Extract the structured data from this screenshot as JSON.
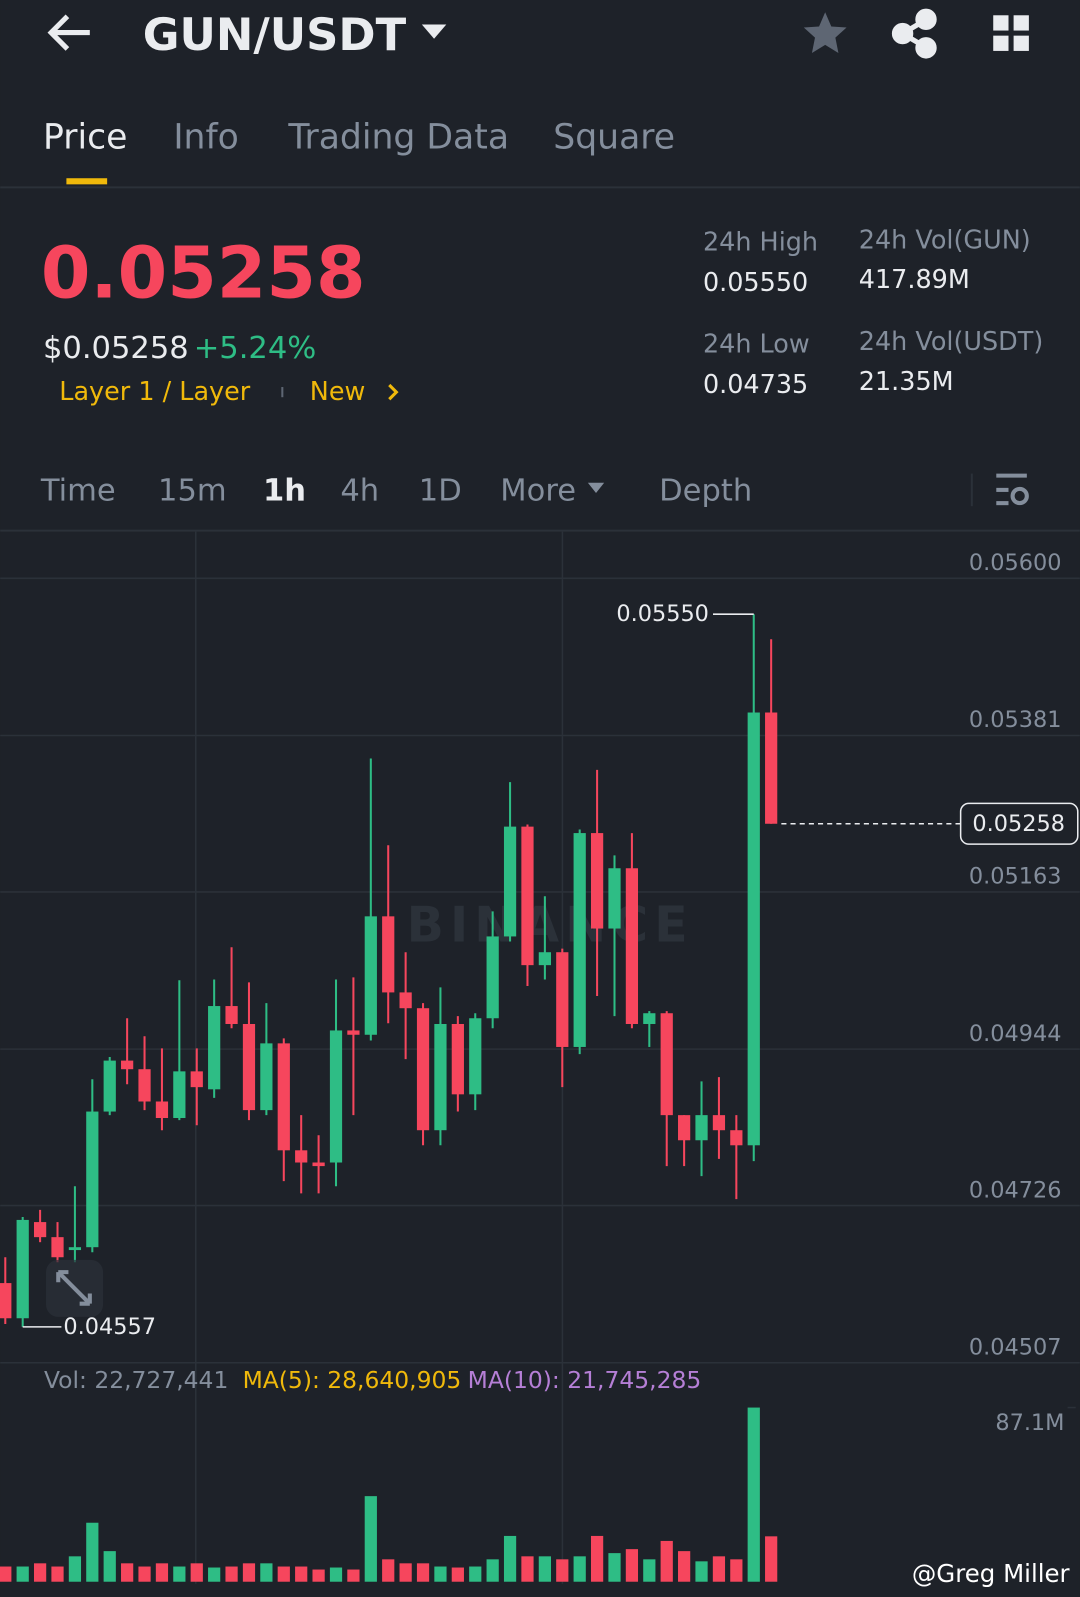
{
  "header": {
    "title": "GUN/USDT"
  },
  "tabs": [
    "Price",
    "Info",
    "Trading Data",
    "Square"
  ],
  "ticker": {
    "price": "0.05258",
    "usd_price": "$0.05258",
    "change": "+5.24%",
    "tag": "Layer 1 / Layer",
    "badge": "New",
    "stats": [
      {
        "label": "24h High",
        "value": "0.05550"
      },
      {
        "label": "24h Vol(GUN)",
        "value": "417.89M"
      },
      {
        "label": "24h Low",
        "value": "0.04735"
      },
      {
        "label": "24h Vol(USDT)",
        "value": "21.35M"
      }
    ]
  },
  "intervals": [
    "Time",
    "15m",
    "1h",
    "4h",
    "1D",
    "More",
    "Depth"
  ],
  "chart_data": {
    "type": "candlestick",
    "watermark": "BINANCE",
    "up_color": "#2ebd85",
    "down_color": "#f6465d",
    "ylim": [
      0.04507,
      0.05665
    ],
    "yticks": [
      {
        "value": 0.056,
        "label": "0.05600"
      },
      {
        "value": 0.05381,
        "label": "0.05381"
      },
      {
        "value": 0.05163,
        "label": "0.05163"
      },
      {
        "value": 0.04944,
        "label": "0.04944"
      },
      {
        "value": 0.04726,
        "label": "0.04726"
      },
      {
        "value": 0.04507,
        "label": "0.04507"
      }
    ],
    "open": [
      0.04618,
      0.04569,
      0.04703,
      0.04682,
      0.04664,
      0.04668,
      0.04857,
      0.04928,
      0.04916,
      0.04871,
      0.04848,
      0.04913,
      0.04888,
      0.05004,
      0.04979,
      0.04859,
      0.04952,
      0.04803,
      0.04786,
      0.04786,
      0.0497,
      0.04964,
      0.05129,
      0.05023,
      0.05001,
      0.04831,
      0.04979,
      0.04881,
      0.04987,
      0.05101,
      0.05254,
      0.05061,
      0.05079,
      0.04947,
      0.05245,
      0.05112,
      0.05196,
      0.04979,
      0.04994,
      0.04852,
      0.04817,
      0.04852,
      0.04831,
      0.0481,
      0.05413
    ],
    "high": [
      0.04654,
      0.0471,
      0.0472,
      0.04703,
      0.04753,
      0.04902,
      0.04933,
      0.04987,
      0.04962,
      0.04945,
      0.0504,
      0.04945,
      0.05041,
      0.05086,
      0.05037,
      0.05008,
      0.04959,
      0.04852,
      0.04824,
      0.05041,
      0.05044,
      0.05349,
      0.05228,
      0.05079,
      0.05008,
      0.0503,
      0.0499,
      0.04994,
      0.05136,
      0.05316,
      0.05257,
      0.05157,
      0.05084,
      0.0525,
      0.05333,
      0.05214,
      0.05245,
      0.04997,
      0.04997,
      0.04852,
      0.04899,
      0.04905,
      0.04852,
      0.0555,
      0.05515
    ],
    "low": [
      0.04561,
      0.04557,
      0.04675,
      0.04647,
      0.04647,
      0.04661,
      0.04852,
      0.04895,
      0.04859,
      0.04831,
      0.04845,
      0.04838,
      0.04876,
      0.04973,
      0.04845,
      0.04852,
      0.0476,
      0.04743,
      0.04743,
      0.04753,
      0.04852,
      0.04956,
      0.0498,
      0.0493,
      0.0481,
      0.0481,
      0.04857,
      0.04859,
      0.04973,
      0.05094,
      0.05032,
      0.05041,
      0.04891,
      0.04937,
      0.05018,
      0.0499,
      0.04973,
      0.04947,
      0.04781,
      0.04781,
      0.04767,
      0.04791,
      0.04735,
      0.04788,
      0.05258
    ],
    "close": [
      0.04569,
      0.04706,
      0.04682,
      0.04654,
      0.04668,
      0.04857,
      0.04928,
      0.04916,
      0.04871,
      0.04848,
      0.04913,
      0.04891,
      0.05004,
      0.04979,
      0.04859,
      0.04952,
      0.04803,
      0.04786,
      0.04781,
      0.0497,
      0.04964,
      0.05129,
      0.05023,
      0.05001,
      0.04831,
      0.04979,
      0.04881,
      0.04987,
      0.05101,
      0.05254,
      0.05061,
      0.05079,
      0.04947,
      0.05245,
      0.05112,
      0.05196,
      0.04979,
      0.04994,
      0.04852,
      0.04817,
      0.04852,
      0.04831,
      0.0481,
      0.05413,
      0.05258
    ],
    "high_label": "0.05550",
    "low_label": "0.04557",
    "last_price_label": "0.05258",
    "volume_legend": {
      "vol": "Vol: 22,727,441",
      "ma5": "MA(5): 28,640,905",
      "ma10": "MA(10): 21,745,285"
    },
    "volume": [
      7.6,
      7.6,
      9.2,
      7.6,
      12.7,
      29.5,
      15.3,
      9.2,
      7.6,
      9.2,
      7.6,
      9.2,
      7.1,
      7.6,
      9.2,
      9.2,
      7.6,
      7.6,
      6.1,
      7.1,
      6.1,
      42.8,
      11.2,
      9.2,
      9.2,
      7.6,
      7.1,
      7.6,
      11.2,
      22.9,
      12.7,
      12.7,
      11.2,
      12.7,
      22.9,
      14.3,
      16.3,
      11.2,
      20.4,
      15.3,
      10.2,
      12.7,
      11.2,
      87.1,
      22.7
    ],
    "vol_ylim": [
      0,
      87.1
    ],
    "vol_yticks": [
      {
        "value": 87.1,
        "label": "87.1M"
      }
    ]
  },
  "credit": "@Greg Miller"
}
